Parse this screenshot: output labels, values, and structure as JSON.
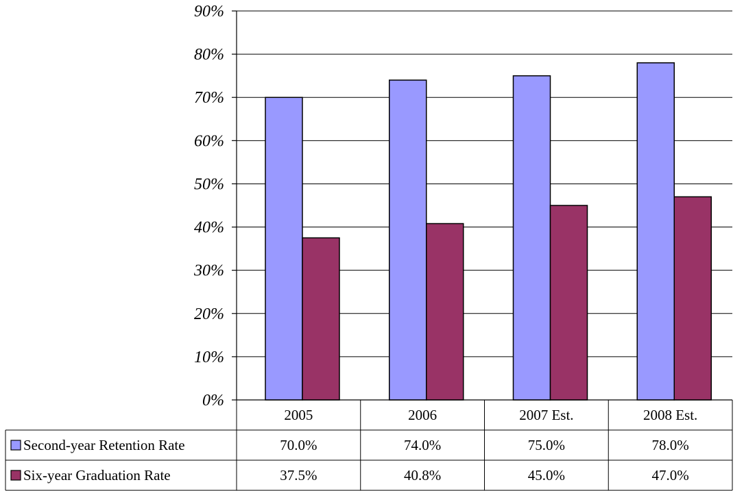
{
  "chart_data": {
    "type": "bar",
    "categories": [
      "2005",
      "2006",
      "2007 Est.",
      "2008 Est."
    ],
    "series": [
      {
        "name": "Second-year Retention Rate",
        "values": [
          70.0,
          74.0,
          75.0,
          78.0
        ],
        "labels": [
          "70.0%",
          "74.0%",
          "75.0%",
          "78.0%"
        ],
        "color": "#9999ff"
      },
      {
        "name": "Six-year Graduation Rate",
        "values": [
          37.5,
          40.8,
          45.0,
          47.0
        ],
        "labels": [
          "37.5%",
          "40.8%",
          "45.0%",
          "47.0%"
        ],
        "color": "#993366"
      }
    ],
    "y_ticks": [
      "0%",
      "10%",
      "20%",
      "30%",
      "40%",
      "50%",
      "60%",
      "70%",
      "80%",
      "90%"
    ],
    "ylim": [
      0,
      90
    ],
    "grid": true,
    "legend": "data-table"
  }
}
